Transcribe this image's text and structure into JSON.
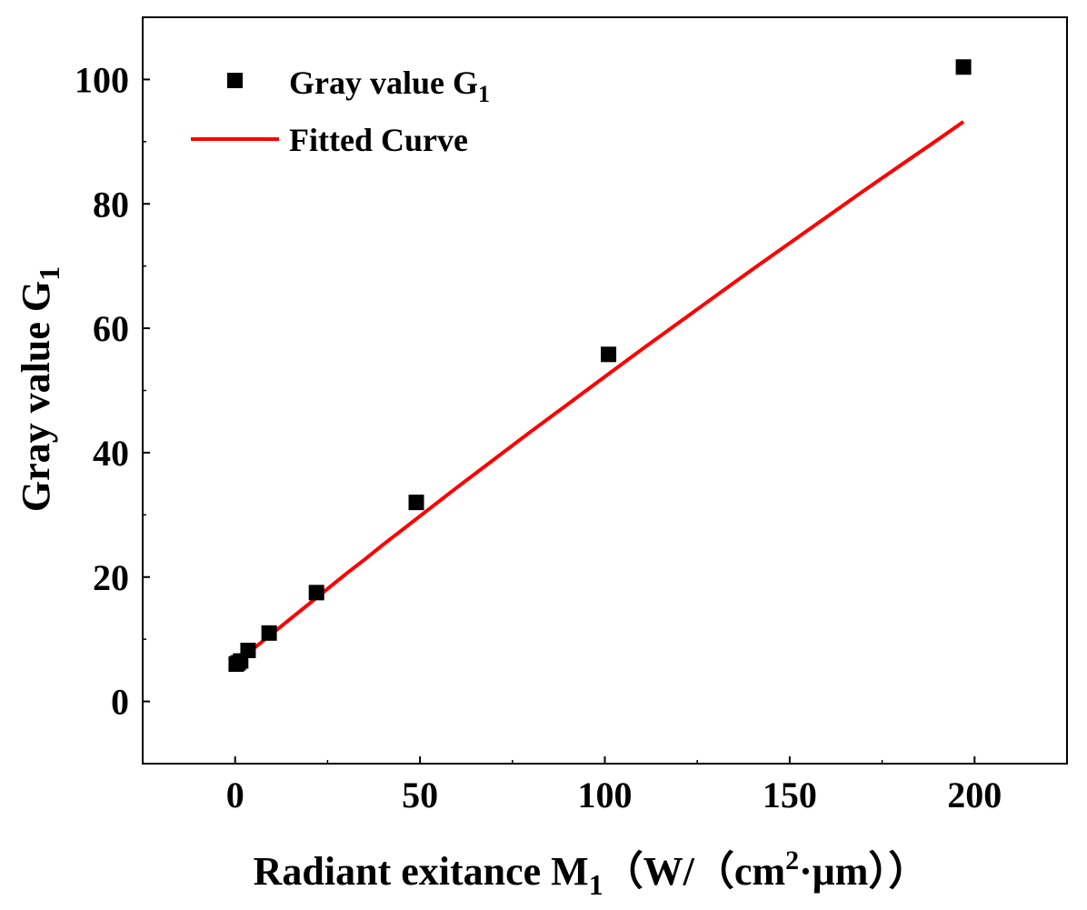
{
  "chart_data": {
    "type": "scatter",
    "title": "",
    "xlabel": {
      "main": "Radiant exitance M",
      "sub": "1",
      "unit_open": "（W/（cm",
      "unit_sup": "2",
      "unit_close": "·μm））"
    },
    "ylabel": {
      "main": "Gray value G",
      "sub": "1"
    },
    "xlim": [
      -25,
      225
    ],
    "ylim": [
      -10,
      110
    ],
    "xticks": [
      0,
      50,
      100,
      150,
      200
    ],
    "yticks": [
      0,
      20,
      40,
      60,
      80,
      100
    ],
    "xtick_labels": [
      "0",
      "50",
      "100",
      "150",
      "200"
    ],
    "ytick_labels": [
      "0",
      "20",
      "40",
      "60",
      "80",
      "100"
    ],
    "grid": false,
    "legend_position": "top-left",
    "series": [
      {
        "name": "Gray value G1",
        "legend_main": "Gray value G",
        "legend_sub": "1",
        "kind": "scatter",
        "marker": "square",
        "color": "#000000",
        "x": [
          0.3,
          0.8,
          1.5,
          3.5,
          9.2,
          22.0,
          49.0,
          101.0,
          197.0
        ],
        "y": [
          6.0,
          6.2,
          6.5,
          8.2,
          11.0,
          17.5,
          32.0,
          55.8,
          102.0
        ]
      },
      {
        "name": "Fitted Curve",
        "kind": "line",
        "color": "#ff0000",
        "x": [
          0,
          2,
          5,
          10,
          15,
          20,
          25,
          30,
          35,
          40,
          45,
          50,
          60,
          70,
          80,
          90,
          100,
          110,
          120,
          130,
          140,
          150,
          160,
          170,
          180,
          190,
          197
        ],
        "y": [
          6.0,
          7.0,
          8.5,
          10.9,
          13.3,
          15.7,
          18.1,
          20.5,
          22.8,
          25.2,
          27.5,
          29.8,
          34.4,
          38.9,
          43.4,
          47.8,
          52.2,
          56.6,
          60.9,
          65.2,
          69.5,
          73.7,
          77.9,
          82.1,
          86.2,
          90.3,
          93.2
        ]
      }
    ]
  }
}
